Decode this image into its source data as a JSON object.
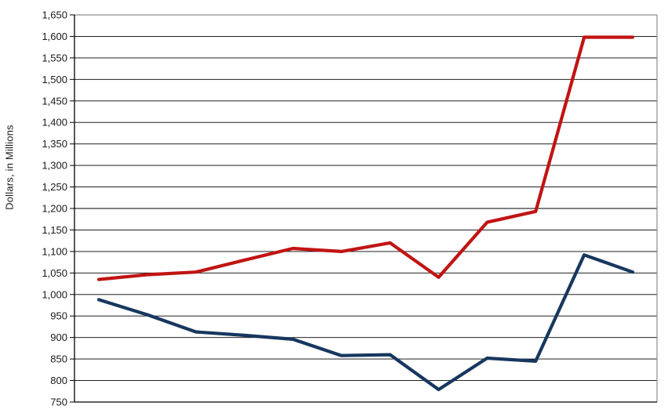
{
  "chart_data": {
    "type": "line",
    "title": "",
    "ylabel": "Dollars, in Millions",
    "ylim": [
      750,
      1650
    ],
    "ytick_step": 50,
    "y_tick_labels": [
      "1,650",
      "1,600",
      "1,550",
      "1,500",
      "1,450",
      "1,400",
      "1,350",
      "1,300",
      "1,250",
      "1,200",
      "1,150",
      "1,100",
      "1,050",
      "1,000",
      "950",
      "900",
      "850",
      "800",
      "750"
    ],
    "x_axis": {
      "labels_visible": false,
      "num_points": 12
    },
    "grid": "horizontal",
    "legend": "none",
    "series": [
      {
        "name": "red-series",
        "color": "#C11414",
        "values": [
          1035,
          1046,
          1052,
          1080,
          1107,
          1100,
          1120,
          1040,
          1168,
          1193,
          1598,
          1598
        ]
      },
      {
        "name": "navy-series",
        "color": "#17375E",
        "values": [
          988,
          953,
          913,
          905,
          896,
          858,
          860,
          779,
          852,
          845,
          1092,
          1052
        ]
      }
    ]
  },
  "colors": {
    "gridline": "#000000",
    "axis": "#000000",
    "plot_border": "#8c8c8c",
    "background": "#FFFFFF"
  }
}
